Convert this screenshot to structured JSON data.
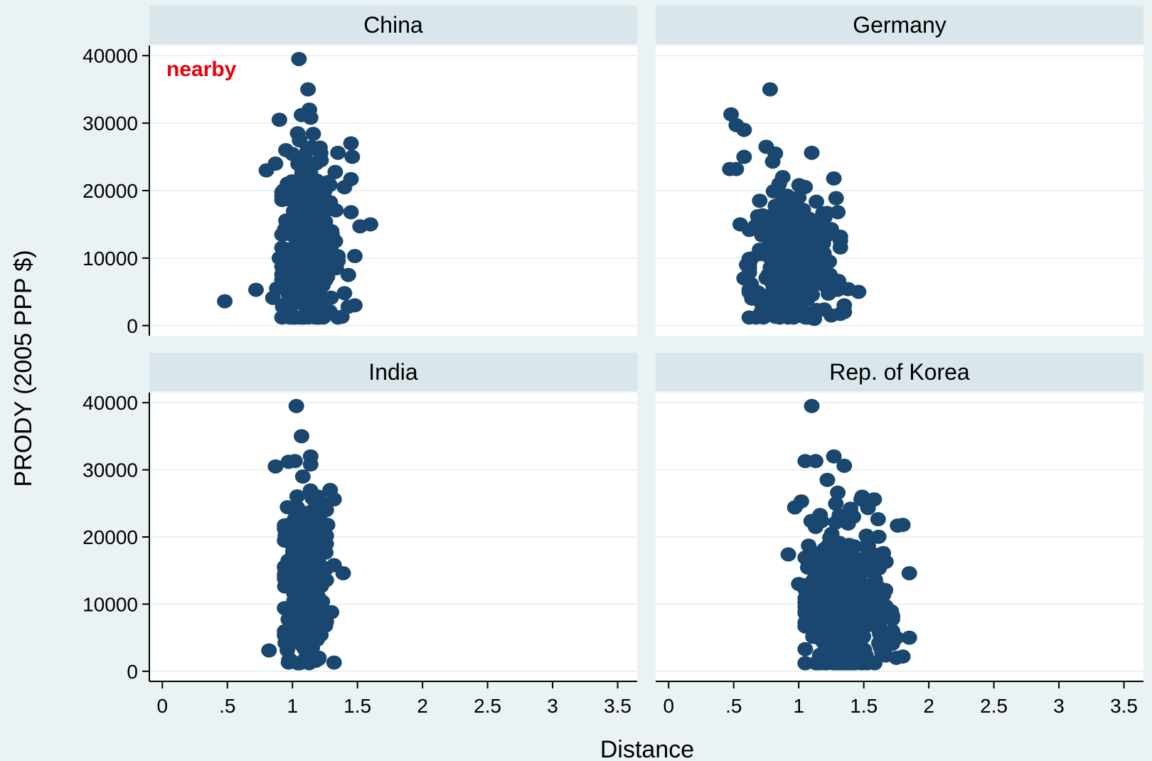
{
  "chart_data": {
    "type": "scatter",
    "layout": "2x2 facets",
    "xlabel": "Distance",
    "ylabel": "PRODY (2005 PPP $)",
    "xlim": [
      -0.1,
      3.65
    ],
    "ylim": [
      -1500,
      41500
    ],
    "xticks": [
      0,
      0.5,
      1,
      1.5,
      2,
      2.5,
      3,
      3.5
    ],
    "xtick_labels": [
      "0",
      ".5",
      "1",
      "1.5",
      "2",
      "2.5",
      "3",
      "3.5"
    ],
    "yticks": [
      0,
      10000,
      20000,
      30000,
      40000
    ],
    "ytick_labels": [
      "0",
      "10000",
      "20000",
      "30000",
      "40000"
    ],
    "grid": true,
    "marker_color": "#1a476f",
    "strip_color": "#d9e6eb",
    "annotation": {
      "text": "nearby",
      "panel": 0,
      "color": "#e8000b"
    },
    "panels": [
      {
        "title": "China",
        "points": [
          [
            1.05,
            39500
          ],
          [
            1.12,
            35000
          ],
          [
            1.13,
            32000
          ],
          [
            1.14,
            30800
          ],
          [
            1.07,
            31200
          ],
          [
            0.9,
            30500
          ],
          [
            1.04,
            28500
          ],
          [
            1.16,
            28400
          ],
          [
            1.45,
            27000
          ],
          [
            1.46,
            25000
          ],
          [
            1.35,
            25600
          ],
          [
            0.87,
            24000
          ],
          [
            0.8,
            23000
          ],
          [
            1.45,
            21700
          ],
          [
            1.4,
            20500
          ],
          [
            0.93,
            20000
          ],
          [
            1.45,
            16800
          ],
          [
            1.52,
            14700
          ],
          [
            1.6,
            15000
          ],
          [
            1.48,
            10300
          ],
          [
            0.9,
            10000
          ],
          [
            0.72,
            5300
          ],
          [
            0.48,
            3600
          ],
          [
            0.85,
            4100
          ],
          [
            0.88,
            5500
          ],
          [
            1.43,
            2800
          ],
          [
            1.48,
            3000
          ],
          [
            1.38,
            1300
          ],
          [
            1.0,
            1200
          ],
          [
            1.25,
            1800
          ],
          [
            0.98,
            2200
          ],
          [
            1.3,
            8800
          ],
          [
            1.43,
            7500
          ],
          [
            1.4,
            4800
          ],
          [
            1.27,
            17500
          ],
          [
            1.22,
            24500
          ],
          [
            0.95,
            26000
          ],
          [
            1.33,
            12500
          ]
        ],
        "cloud": {
          "x": [
            0.92,
            1.35
          ],
          "y": [
            1200,
            29000
          ],
          "xc": 1.12,
          "yc": 12000,
          "n": 340
        }
      },
      {
        "title": "Germany",
        "points": [
          [
            0.78,
            35000
          ],
          [
            0.48,
            31300
          ],
          [
            0.52,
            29700
          ],
          [
            0.58,
            29000
          ],
          [
            0.75,
            26500
          ],
          [
            0.82,
            25500
          ],
          [
            1.1,
            25600
          ],
          [
            1.27,
            21800
          ],
          [
            0.58,
            25000
          ],
          [
            0.47,
            23200
          ],
          [
            0.52,
            23200
          ],
          [
            0.8,
            24300
          ],
          [
            0.85,
            21000
          ],
          [
            1.0,
            19000
          ],
          [
            1.3,
            16800
          ],
          [
            1.25,
            14300
          ],
          [
            1.3,
            5300
          ],
          [
            1.38,
            5400
          ],
          [
            1.46,
            5000
          ],
          [
            0.55,
            15000
          ],
          [
            0.6,
            9000
          ],
          [
            0.58,
            7000
          ],
          [
            0.64,
            4000
          ],
          [
            0.82,
            1300
          ],
          [
            1.05,
            1500
          ],
          [
            1.12,
            1000
          ],
          [
            1.25,
            1500
          ],
          [
            1.35,
            2000
          ],
          [
            1.35,
            3000
          ],
          [
            0.95,
            12000
          ],
          [
            1.15,
            14000
          ],
          [
            0.7,
            18500
          ]
        ],
        "cloud": {
          "x": [
            0.62,
            1.32
          ],
          "y": [
            1200,
            22000
          ],
          "xc": 0.95,
          "yc": 9500,
          "n": 340
        }
      },
      {
        "title": "India",
        "points": [
          [
            1.03,
            39500
          ],
          [
            1.07,
            35000
          ],
          [
            1.14,
            32000
          ],
          [
            1.02,
            31300
          ],
          [
            0.87,
            30500
          ],
          [
            0.97,
            31200
          ],
          [
            1.14,
            30800
          ],
          [
            1.08,
            29000
          ],
          [
            1.2,
            26000
          ],
          [
            1.29,
            27000
          ],
          [
            1.32,
            25600
          ],
          [
            1.26,
            24000
          ],
          [
            1.27,
            21800
          ],
          [
            1.32,
            15800
          ],
          [
            1.39,
            14600
          ],
          [
            1.3,
            8800
          ],
          [
            0.82,
            3100
          ],
          [
            1.32,
            1300
          ],
          [
            0.97,
            1300
          ],
          [
            1.05,
            1200
          ],
          [
            1.1,
            1500
          ],
          [
            1.2,
            1800
          ],
          [
            0.96,
            19500
          ],
          [
            0.98,
            8000
          ],
          [
            1.0,
            4300
          ],
          [
            1.15,
            20500
          ]
        ],
        "cloud": {
          "x": [
            0.94,
            1.26
          ],
          "y": [
            1200,
            28000
          ],
          "xc": 1.09,
          "yc": 13000,
          "n": 300
        }
      },
      {
        "title": "Rep. of Korea",
        "points": [
          [
            1.1,
            39500
          ],
          [
            1.27,
            32000
          ],
          [
            1.35,
            30600
          ],
          [
            1.13,
            31300
          ],
          [
            1.05,
            31300
          ],
          [
            1.22,
            28500
          ],
          [
            1.3,
            26600
          ],
          [
            1.48,
            25600
          ],
          [
            1.58,
            25600
          ],
          [
            1.52,
            25100
          ],
          [
            1.42,
            23000
          ],
          [
            1.38,
            22000
          ],
          [
            1.76,
            21700
          ],
          [
            1.8,
            21800
          ],
          [
            1.52,
            20200
          ],
          [
            0.92,
            17400
          ],
          [
            0.97,
            24400
          ],
          [
            1.02,
            25300
          ],
          [
            1.65,
            17600
          ],
          [
            1.67,
            16300
          ],
          [
            1.85,
            14600
          ],
          [
            1.62,
            11700
          ],
          [
            1.6,
            10000
          ],
          [
            1.65,
            8800
          ],
          [
            1.75,
            5000
          ],
          [
            1.85,
            5000
          ],
          [
            1.8,
            2200
          ],
          [
            1.75,
            2000
          ],
          [
            1.64,
            2800
          ],
          [
            1.18,
            1300
          ],
          [
            1.3,
            1200
          ],
          [
            1.48,
            1200
          ],
          [
            1.58,
            1300
          ],
          [
            1.2,
            4000
          ],
          [
            1.1,
            8500
          ],
          [
            1.0,
            13000
          ],
          [
            1.42,
            18500
          ],
          [
            1.55,
            15000
          ]
        ],
        "cloud": {
          "x": [
            1.05,
            1.72
          ],
          "y": [
            1200,
            26000
          ],
          "xc": 1.35,
          "yc": 10000,
          "n": 380
        }
      }
    ]
  }
}
